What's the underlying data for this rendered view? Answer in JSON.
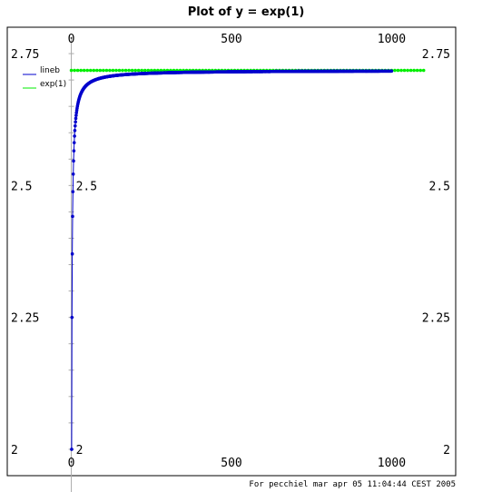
{
  "chart_data": {
    "type": "line",
    "title": "Plot of y = exp(1)",
    "xlim": [
      -200,
      1200
    ],
    "ylim": [
      1.95,
      2.8
    ],
    "x_ticks": [
      0,
      500,
      1000
    ],
    "x_tick_labels": [
      "0",
      "500",
      "1000"
    ],
    "y_ticks": [
      2.0,
      2.25,
      2.5,
      2.75
    ],
    "y_tick_labels": [
      "2",
      "2.25",
      "2.5",
      "2.75"
    ],
    "y_axis_inner_labels": [
      {
        "y": 2.5,
        "label": "2.5"
      },
      {
        "y": 2.0,
        "label": "2"
      }
    ],
    "grid": false,
    "legend_position": "top-left",
    "series": [
      {
        "name": "lineb",
        "color": "#0000cc",
        "formula": "(1 + 1/n)^n",
        "n_range": [
          1,
          1000
        ],
        "marker": "dot",
        "values_sample": [
          {
            "x": 1,
            "y": 2.0
          },
          {
            "x": 2,
            "y": 2.25
          },
          {
            "x": 3,
            "y": 2.37
          },
          {
            "x": 5,
            "y": 2.49
          },
          {
            "x": 10,
            "y": 2.594
          },
          {
            "x": 100,
            "y": 2.705
          },
          {
            "x": 1000,
            "y": 2.717
          }
        ]
      },
      {
        "name": "exp(1)",
        "color": "#00ee00",
        "constant": 2.71828,
        "x_range": [
          0,
          1100
        ],
        "marker": "dot"
      }
    ]
  },
  "footer": {
    "text": "For pecchiel mar apr 05 11:04:44 CEST 2005"
  }
}
